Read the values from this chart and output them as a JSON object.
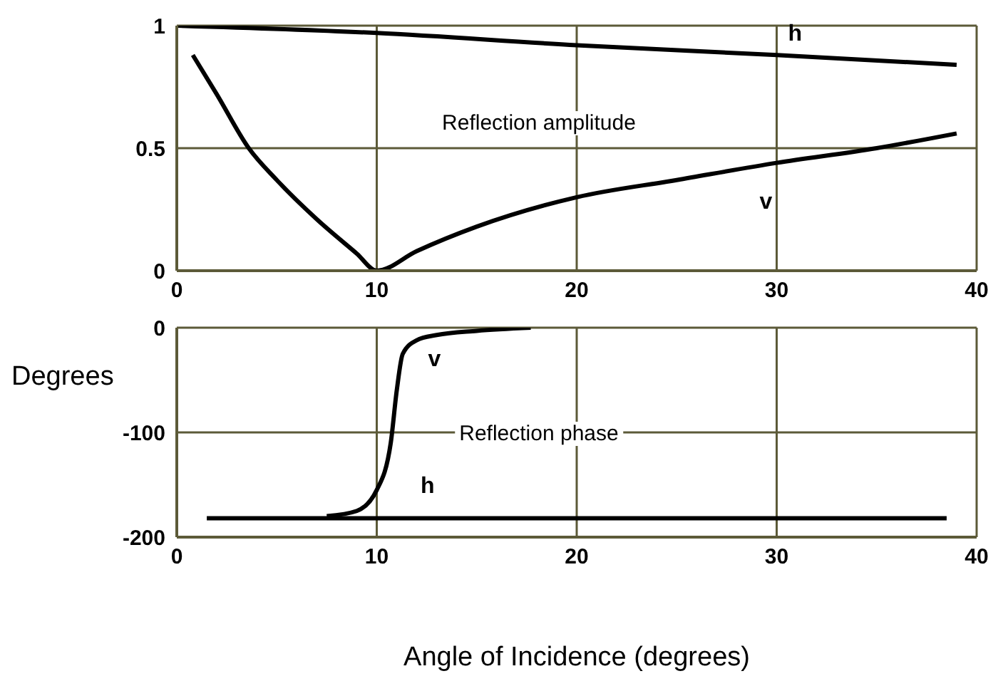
{
  "chart_data": [
    {
      "type": "line",
      "annotations": [
        "Reflection amplitude"
      ],
      "xlim": [
        0,
        40
      ],
      "xticks": [
        0,
        10,
        20,
        30,
        40
      ],
      "ylim": [
        0,
        1
      ],
      "yticks": [
        0,
        0.5,
        1
      ],
      "grid": true,
      "legend": false,
      "marker": "none",
      "line_style": "solid",
      "series": [
        {
          "name": "h",
          "color": "#000000",
          "x": [
            0,
            10,
            20,
            30,
            39
          ],
          "values": [
            1,
            0.97,
            0.92,
            0.88,
            0.84
          ]
        },
        {
          "name": "v",
          "color": "#000000",
          "x": [
            0.8,
            2,
            3.6,
            5,
            7,
            9,
            10,
            12,
            15,
            20,
            25,
            30,
            35,
            39
          ],
          "values": [
            0.88,
            0.72,
            0.5,
            0.37,
            0.21,
            0.07,
            0,
            0.08,
            0.18,
            0.3,
            0.37,
            0.44,
            0.5,
            0.56
          ]
        }
      ]
    },
    {
      "type": "line",
      "annotations": [
        "Reflection phase"
      ],
      "xlabel": "Angle of Incidence (degrees)",
      "ylabel": "Degrees",
      "xlim": [
        0,
        40
      ],
      "xticks": [
        0,
        10,
        20,
        30,
        40
      ],
      "ylim": [
        -200,
        0
      ],
      "yticks": [
        -200,
        -100,
        0
      ],
      "grid": true,
      "legend": false,
      "marker": "none",
      "line_style": "solid",
      "series": [
        {
          "name": "v",
          "color": "#000000",
          "x": [
            7.5,
            9,
            10,
            10.7,
            11,
            11.3,
            12,
            13,
            15,
            17.7
          ],
          "values": [
            -180,
            -175,
            -155,
            -110,
            -60,
            -25,
            -12,
            -7,
            -3,
            0
          ]
        },
        {
          "name": "h",
          "color": "#000000",
          "x": [
            1.5,
            38.5
          ],
          "values": [
            -182,
            -182
          ]
        }
      ]
    }
  ]
}
